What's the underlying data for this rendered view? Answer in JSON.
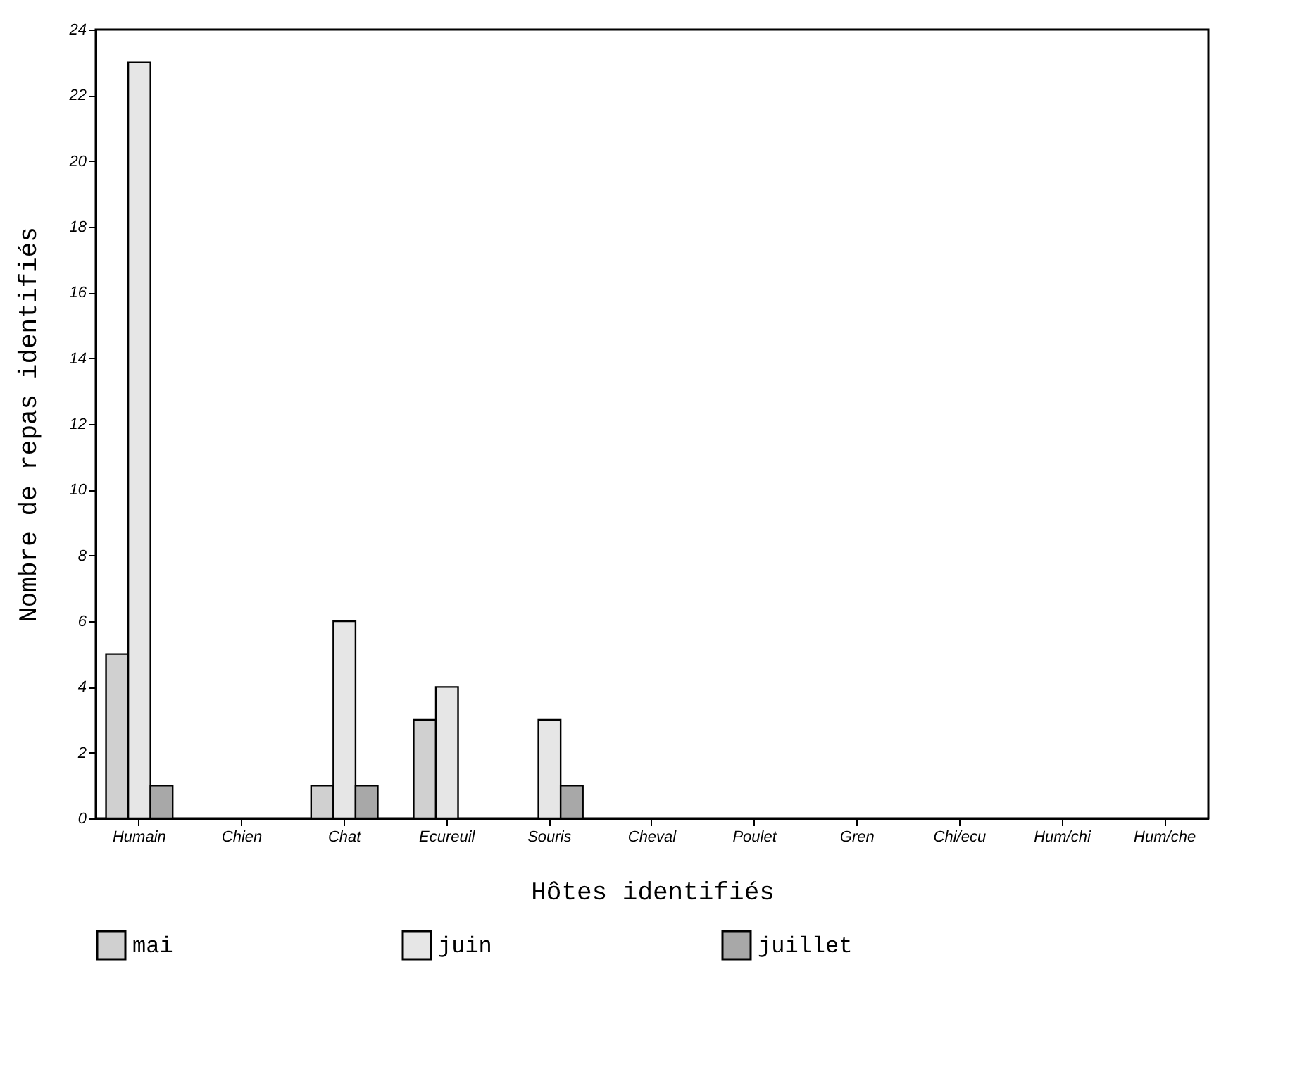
{
  "chart_data": {
    "type": "bar",
    "xlabel": "Hôtes identifiés",
    "ylabel": "Nombre de repas identifiés",
    "categories": [
      "Humain",
      "Chien",
      "Chat",
      "Ecureuil",
      "Souris",
      "Cheval",
      "Poulet",
      "Gren",
      "Chi/ecu",
      "Hum/chi",
      "Hum/che"
    ],
    "series": [
      {
        "name": "mai",
        "color": "#d0d0d0",
        "values": [
          5,
          0,
          1,
          3,
          0,
          0,
          0,
          0,
          0,
          0,
          0
        ]
      },
      {
        "name": "juin",
        "color": "#e6e6e6",
        "values": [
          23,
          0,
          6,
          4,
          3,
          0,
          0,
          0,
          0,
          0,
          0
        ]
      },
      {
        "name": "juillet",
        "color": "#a8a8a8",
        "values": [
          1,
          0,
          1,
          0,
          1,
          0,
          0,
          0,
          0,
          0,
          0
        ]
      }
    ],
    "ylim": [
      0,
      24
    ],
    "yticks": [
      0,
      2,
      4,
      6,
      8,
      10,
      12,
      14,
      16,
      18,
      20,
      22,
      24
    ],
    "grid": false,
    "legend": "bottom"
  }
}
